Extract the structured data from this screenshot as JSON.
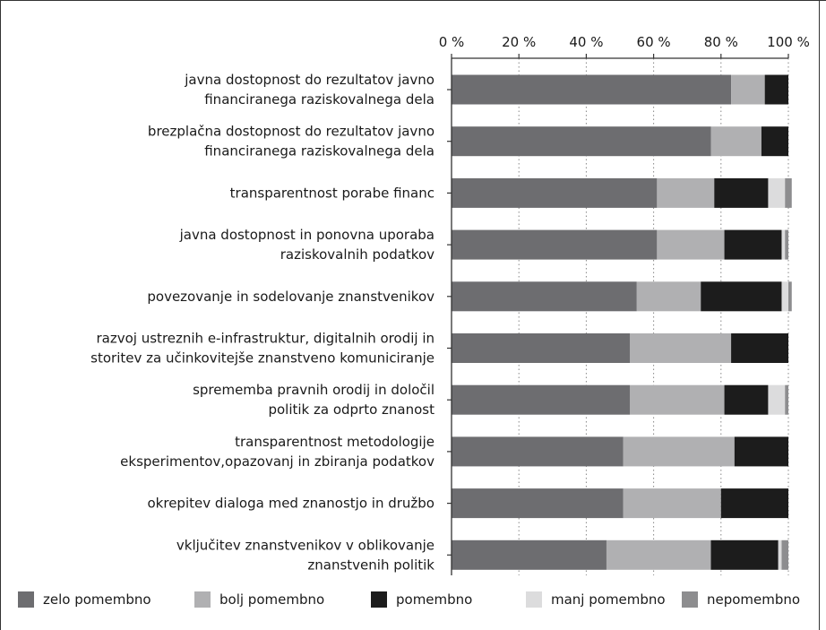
{
  "colors": {
    "zelo": "#6d6d70",
    "bolj": "#b0b0b2",
    "pomembno": "#1c1c1c",
    "manj": "#dcdcdd",
    "ne": "#8d8d8f",
    "axis": "#333333",
    "grid": "#888888"
  },
  "chart_data": {
    "type": "bar",
    "orientation": "horizontal",
    "stacked": true,
    "xlim": [
      0,
      100
    ],
    "x_ticks": [
      "0 %",
      "20 %",
      "40 %",
      "60 %",
      "80 %",
      "100 %"
    ],
    "x_tick_values": [
      0,
      20,
      40,
      60,
      80,
      100
    ],
    "grid": "vertical dotted",
    "legend_position": "bottom",
    "categories": [
      [
        "javna dostopnost do rezultatov javno",
        "financiranega raziskovalnega dela"
      ],
      [
        "brezplačna dostopnost do rezultatov javno",
        "financiranega raziskovalnega dela"
      ],
      [
        "transparentnost porabe financ"
      ],
      [
        "javna dostopnost in ponovna uporaba",
        "raziskovalnih podatkov"
      ],
      [
        "povezovanje in sodelovanje znanstvenikov"
      ],
      [
        "razvoj ustreznih e-infrastruktur, digitalnih orodij in",
        "storitev za učinkovitejše znanstveno komuniciranje"
      ],
      [
        "sprememba pravnih orodij in določil",
        "politik za odprto znanost"
      ],
      [
        "transparentnost metodologije",
        "eksperimentov,opazovanj in zbiranja podatkov"
      ],
      [
        "okrepitev dialoga med znanostjo in družbo"
      ],
      [
        "vključitev znanstvenikov v oblikovanje",
        "znanstvenih politik"
      ]
    ],
    "series": [
      {
        "name": "zelo pomembno",
        "color_key": "zelo",
        "values": [
          83,
          77,
          61,
          61,
          55,
          53,
          53,
          51,
          51,
          46
        ]
      },
      {
        "name": "bolj pomembno",
        "color_key": "bolj",
        "values": [
          10,
          15,
          17,
          20,
          19,
          30,
          28,
          33,
          29,
          31
        ]
      },
      {
        "name": "pomembno",
        "color_key": "pomembno",
        "values": [
          7,
          8,
          16,
          17,
          24,
          17,
          13,
          16,
          20,
          20
        ]
      },
      {
        "name": "manj pomembno",
        "color_key": "manj",
        "values": [
          0,
          0,
          5,
          1,
          2,
          0,
          5,
          0,
          0,
          1
        ]
      },
      {
        "name": "nepomembno",
        "color_key": "ne",
        "values": [
          0,
          0,
          2,
          1,
          1,
          0,
          1,
          0,
          0,
          2
        ]
      }
    ]
  }
}
